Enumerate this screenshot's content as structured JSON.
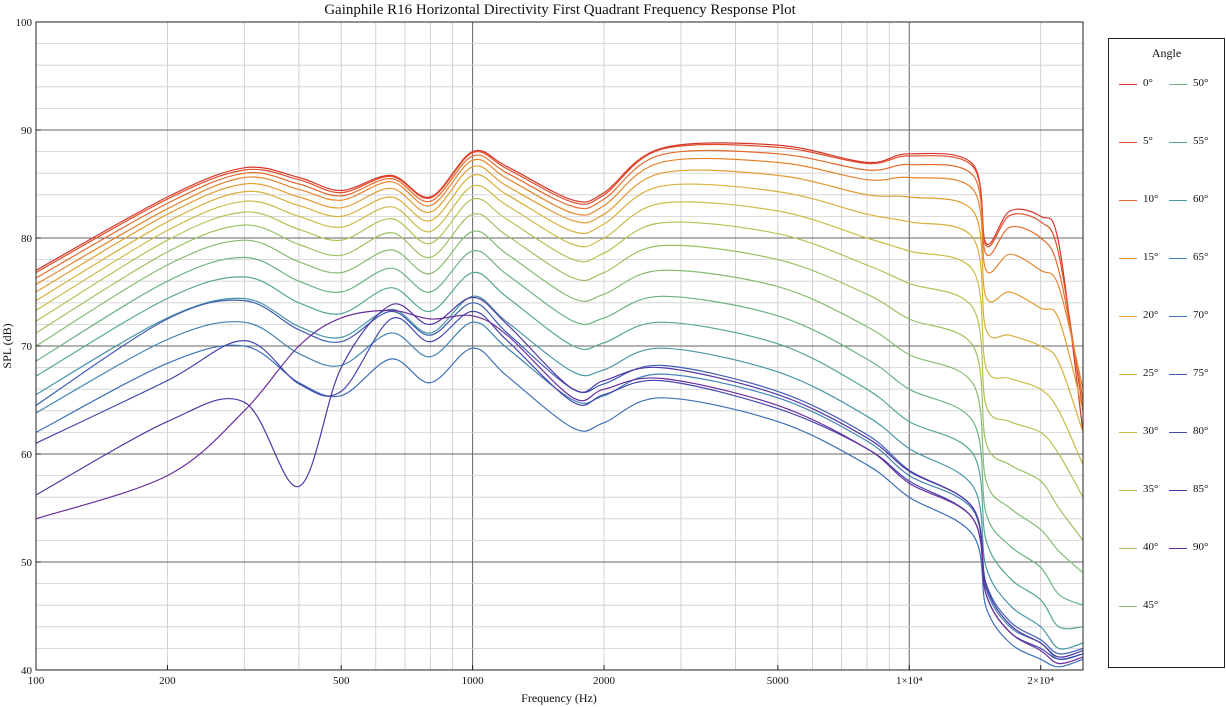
{
  "chart_data": {
    "type": "line",
    "title": "Gainphile R16 Horizontal Directivity First Quadrant Frequency Response Plot",
    "xlabel": "Frequency (Hz)",
    "ylabel": "SPL (dB)",
    "xscale": "log",
    "xlim": [
      100,
      25000
    ],
    "ylim": [
      40,
      100
    ],
    "grid": true,
    "legend_title": "Angle",
    "legend_position": "right",
    "x_tick_labels": [
      {
        "value": 100,
        "label": "100"
      },
      {
        "value": 200,
        "label": "200"
      },
      {
        "value": 500,
        "label": "500"
      },
      {
        "value": 1000,
        "label": "1000"
      },
      {
        "value": 2000,
        "label": "2000"
      },
      {
        "value": 5000,
        "label": "5000"
      },
      {
        "value": 10000,
        "label": "1×10⁴"
      },
      {
        "value": 20000,
        "label": "2×10⁴"
      }
    ],
    "y_tick_labels": [
      {
        "value": 40,
        "label": "40"
      },
      {
        "value": 50,
        "label": "50"
      },
      {
        "value": 60,
        "label": "60"
      },
      {
        "value": 70,
        "label": "70"
      },
      {
        "value": 80,
        "label": "80"
      },
      {
        "value": 90,
        "label": "90"
      },
      {
        "value": 100,
        "label": "100"
      }
    ],
    "x": [
      100,
      200,
      300,
      400,
      500,
      650,
      800,
      1000,
      1200,
      1700,
      2000,
      2700,
      5000,
      8000,
      10000,
      14000,
      15000,
      17000,
      20000,
      22000,
      25000
    ],
    "series": [
      {
        "name": "0°",
        "color": "#d7362c",
        "values": [
          77.0,
          83.8,
          86.5,
          85.6,
          84.4,
          85.8,
          83.8,
          88.0,
          86.6,
          83.5,
          84.2,
          88.3,
          88.6,
          87.0,
          87.8,
          86.8,
          79.5,
          82.5,
          82.0,
          79.5,
          62.0
        ]
      },
      {
        "name": "5°",
        "color": "#df4d2a",
        "values": [
          76.8,
          83.6,
          86.3,
          85.4,
          84.2,
          85.7,
          83.7,
          87.9,
          86.4,
          83.3,
          84.0,
          88.2,
          88.4,
          86.9,
          87.6,
          86.6,
          79.3,
          82.1,
          81.5,
          78.5,
          64.0
        ]
      },
      {
        "name": "10°",
        "color": "#e46a2c",
        "values": [
          76.3,
          83.2,
          86.0,
          85.0,
          83.9,
          85.5,
          83.4,
          87.6,
          86.0,
          82.9,
          83.6,
          87.7,
          87.8,
          86.3,
          86.8,
          85.8,
          78.5,
          81.0,
          80.0,
          77.0,
          65.0
        ]
      },
      {
        "name": "15°",
        "color": "#e6842e",
        "values": [
          75.7,
          82.7,
          85.6,
          84.5,
          83.5,
          85.2,
          83.0,
          87.2,
          85.5,
          82.3,
          83.0,
          87.0,
          87.0,
          85.4,
          85.6,
          84.5,
          77.0,
          78.5,
          77.0,
          75.5,
          66.0
        ]
      },
      {
        "name": "20°",
        "color": "#e29d33",
        "values": [
          75.0,
          82.2,
          85.0,
          83.8,
          82.8,
          84.6,
          82.4,
          86.6,
          84.8,
          81.6,
          82.2,
          86.0,
          85.8,
          84.0,
          83.8,
          82.5,
          74.5,
          75.0,
          73.5,
          72.5,
          64.0
        ]
      },
      {
        "name": "25°",
        "color": "#d8b13c",
        "values": [
          74.2,
          81.5,
          84.3,
          83.0,
          82.0,
          83.8,
          81.6,
          85.8,
          84.0,
          80.6,
          81.3,
          84.8,
          84.3,
          82.2,
          81.5,
          80.0,
          71.5,
          71.0,
          70.0,
          68.5,
          62.0
        ]
      },
      {
        "name": "30°",
        "color": "#c9bd48",
        "values": [
          73.3,
          80.7,
          83.4,
          82.0,
          81.0,
          82.9,
          80.6,
          84.8,
          83.0,
          79.4,
          80.0,
          83.2,
          82.5,
          80.0,
          78.8,
          77.0,
          68.0,
          67.0,
          66.0,
          64.0,
          59.0
        ]
      },
      {
        "name": "35°",
        "color": "#b6c155",
        "values": [
          72.3,
          79.8,
          82.4,
          80.8,
          79.8,
          81.8,
          79.5,
          83.6,
          81.7,
          78.0,
          78.6,
          81.4,
          80.4,
          77.5,
          75.8,
          73.5,
          64.5,
          63.0,
          62.0,
          60.0,
          56.0
        ]
      },
      {
        "name": "40°",
        "color": "#9fc163",
        "values": [
          71.2,
          78.7,
          81.2,
          79.4,
          78.4,
          80.5,
          78.2,
          82.2,
          80.2,
          76.3,
          76.8,
          79.3,
          78.0,
          74.8,
          72.5,
          70.0,
          61.0,
          59.0,
          57.5,
          55.0,
          52.0
        ]
      },
      {
        "name": "45°",
        "color": "#86bc74",
        "values": [
          70.0,
          77.5,
          79.8,
          77.8,
          76.8,
          78.9,
          76.7,
          80.6,
          78.5,
          74.4,
          74.8,
          77.0,
          75.5,
          71.8,
          69.2,
          66.5,
          57.5,
          55.0,
          53.0,
          51.0,
          49.0
        ]
      },
      {
        "name": "50°",
        "color": "#6db386",
        "values": [
          68.6,
          76.0,
          78.2,
          76.0,
          75.0,
          77.2,
          75.0,
          78.8,
          76.6,
          72.3,
          72.6,
          74.6,
          72.8,
          68.8,
          66.0,
          63.0,
          54.5,
          51.5,
          49.5,
          47.0,
          46.0
        ]
      },
      {
        "name": "55°",
        "color": "#56a697",
        "values": [
          67.2,
          74.4,
          76.4,
          74.0,
          73.0,
          75.4,
          73.2,
          76.8,
          74.5,
          70.0,
          70.3,
          72.2,
          70.2,
          66.0,
          63.0,
          60.0,
          52.0,
          48.5,
          46.5,
          44.0,
          44.0
        ]
      },
      {
        "name": "60°",
        "color": "#4996a6",
        "values": [
          65.5,
          72.6,
          74.4,
          71.8,
          70.8,
          73.4,
          71.2,
          74.6,
          72.2,
          67.6,
          67.8,
          69.8,
          67.6,
          63.5,
          60.5,
          57.0,
          49.5,
          46.0,
          44.0,
          42.0,
          42.5
        ]
      },
      {
        "name": "65°",
        "color": "#4183b3",
        "values": [
          63.8,
          70.6,
          72.2,
          69.3,
          68.2,
          71.2,
          69.0,
          72.2,
          69.8,
          65.0,
          65.4,
          67.4,
          65.2,
          61.2,
          58.0,
          54.8,
          47.5,
          44.0,
          42.5,
          41.0,
          41.5
        ]
      },
      {
        "name": "70°",
        "color": "#3e70b7",
        "values": [
          62.0,
          68.4,
          70.0,
          66.6,
          65.4,
          68.8,
          66.6,
          69.8,
          67.2,
          62.4,
          62.9,
          65.2,
          63.0,
          59.0,
          56.0,
          52.5,
          45.8,
          42.5,
          41.0,
          40.3,
          41.0
        ]
      },
      {
        "name": "75°",
        "color": "#3f5db4",
        "values": [
          64.5,
          72.5,
          74.2,
          71.5,
          70.4,
          73.2,
          71.0,
          74.0,
          71.2,
          66.0,
          66.5,
          68.2,
          65.8,
          61.8,
          58.5,
          55.0,
          48.0,
          44.5,
          42.8,
          41.5,
          42.0
        ]
      },
      {
        "name": "80°",
        "color": "#4447ae",
        "values": [
          61.0,
          66.8,
          70.5,
          66.5,
          65.8,
          72.5,
          70.4,
          73.2,
          70.5,
          64.8,
          65.5,
          66.8,
          64.2,
          60.5,
          57.5,
          54.0,
          47.0,
          43.5,
          42.0,
          41.0,
          41.5
        ]
      },
      {
        "name": "85°",
        "color": "#4f36a4",
        "values": [
          56.2,
          63.0,
          64.8,
          57.0,
          68.0,
          73.8,
          72.0,
          74.5,
          72.0,
          66.0,
          66.8,
          68.0,
          65.5,
          61.5,
          58.4,
          55.0,
          47.8,
          44.2,
          42.5,
          41.2,
          41.8
        ]
      },
      {
        "name": "90°",
        "color": "#6a2d9d",
        "values": [
          54.0,
          58.0,
          64.0,
          70.0,
          72.6,
          73.3,
          72.5,
          72.8,
          71.0,
          65.2,
          66.0,
          67.0,
          64.5,
          60.5,
          57.3,
          54.0,
          47.0,
          43.5,
          41.8,
          40.6,
          41.2
        ]
      }
    ]
  }
}
